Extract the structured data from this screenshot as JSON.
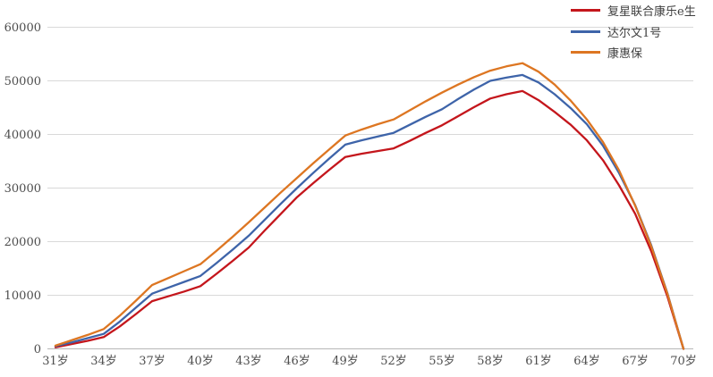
{
  "chart_data": {
    "type": "line",
    "title": "",
    "xlabel": "",
    "ylabel": "",
    "ylim": [
      0,
      60000
    ],
    "y_ticks": [
      0,
      10000,
      20000,
      30000,
      40000,
      50000,
      60000
    ],
    "grid": "horizontal",
    "legend_position": "top-right",
    "ages": [
      31,
      32,
      33,
      34,
      35,
      36,
      37,
      38,
      39,
      40,
      41,
      42,
      43,
      44,
      45,
      46,
      47,
      48,
      49,
      50,
      51,
      52,
      53,
      54,
      55,
      56,
      57,
      58,
      59,
      60,
      61,
      62,
      63,
      64,
      65,
      66,
      67,
      68,
      69,
      70
    ],
    "x_ticks": [
      {
        "age": 31,
        "label": "31岁"
      },
      {
        "age": 34,
        "label": "34岁"
      },
      {
        "age": 37,
        "label": "37岁"
      },
      {
        "age": 40,
        "label": "40岁"
      },
      {
        "age": 43,
        "label": "43岁"
      },
      {
        "age": 46,
        "label": "46岁"
      },
      {
        "age": 49,
        "label": "49岁"
      },
      {
        "age": 52,
        "label": "52岁"
      },
      {
        "age": 55,
        "label": "55岁"
      },
      {
        "age": 58,
        "label": "58岁"
      },
      {
        "age": 61,
        "label": "61岁"
      },
      {
        "age": 64,
        "label": "64岁"
      },
      {
        "age": 67,
        "label": "67岁"
      },
      {
        "age": 70,
        "label": "70岁"
      }
    ],
    "series": [
      {
        "name": "复星联合康乐e生",
        "color": "#c4161c",
        "values": [
          300,
          900,
          1500,
          2200,
          4200,
          6500,
          8900,
          9800,
          10700,
          11700,
          14000,
          16400,
          18900,
          22100,
          25200,
          28300,
          30900,
          33400,
          35800,
          36400,
          36900,
          37400,
          38800,
          40300,
          41700,
          43400,
          45100,
          46700,
          47500,
          48100,
          46400,
          44200,
          41800,
          38900,
          35200,
          30500,
          25200,
          18200,
          9800,
          0
        ]
      },
      {
        "name": "达尔文1号",
        "color": "#3e64a9",
        "values": [
          500,
          1200,
          2000,
          2800,
          5100,
          7700,
          10300,
          11400,
          12500,
          13600,
          16000,
          18500,
          21100,
          24100,
          27100,
          30000,
          32800,
          35500,
          38100,
          38900,
          39600,
          40300,
          41800,
          43300,
          44700,
          46600,
          48400,
          50000,
          50600,
          51100,
          49700,
          47500,
          44900,
          41900,
          37900,
          32800,
          26800,
          19300,
          10400,
          0
        ]
      },
      {
        "name": "康惠保",
        "color": "#dd7622",
        "values": [
          600,
          1600,
          2600,
          3700,
          6200,
          9000,
          11900,
          13200,
          14500,
          15800,
          18300,
          20900,
          23600,
          26400,
          29200,
          31900,
          34600,
          37200,
          39800,
          40900,
          41900,
          42800,
          44500,
          46200,
          47800,
          49300,
          50700,
          51900,
          52700,
          53300,
          51700,
          49300,
          46300,
          42800,
          38600,
          33300,
          26700,
          19100,
          10300,
          0
        ]
      }
    ],
    "colors": {
      "gridline": "#d9d9d9",
      "axis_line": "#b7b7b7",
      "tick_text": "#4d4d4d"
    }
  }
}
